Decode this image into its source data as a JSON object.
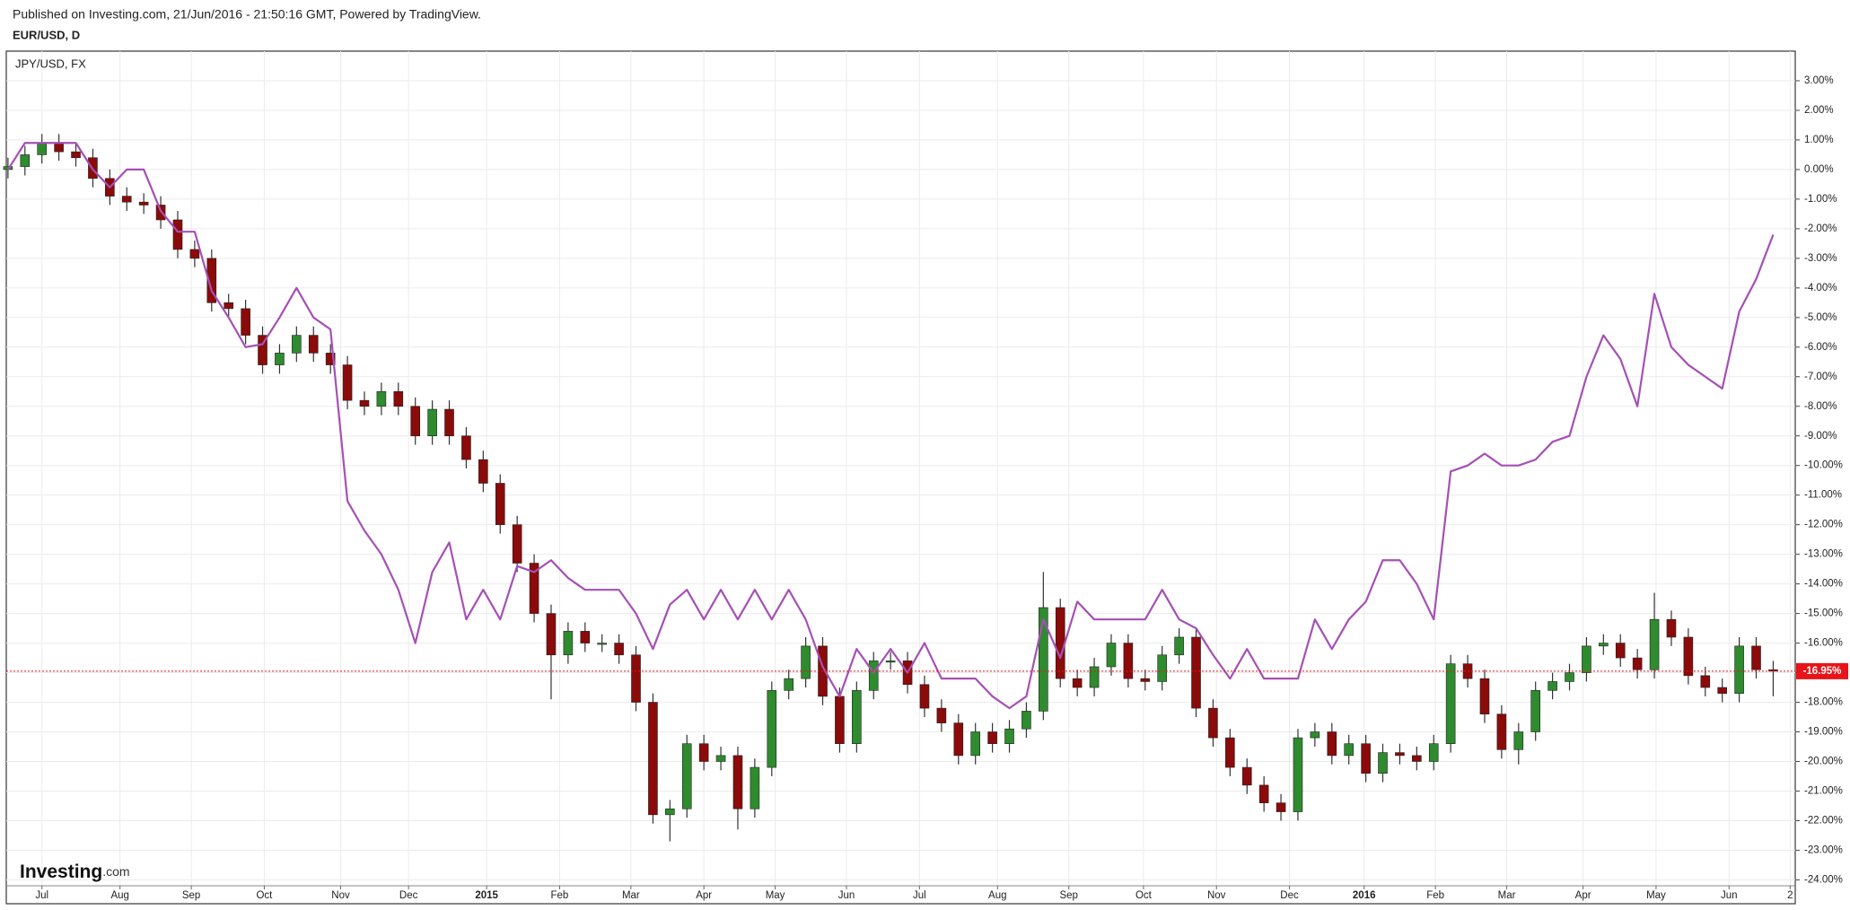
{
  "chart_data": {
    "type": "candlestick",
    "subtitle": "Published on Investing.com, 21/Jun/2016 - 21:50:16 GMT, Powered by TradingView.",
    "title": "EUR/USD, D",
    "x": [
      -2,
      -1,
      0,
      1,
      2,
      3,
      4,
      5,
      6,
      7,
      8,
      9,
      10,
      11,
      12,
      13,
      14,
      15,
      16,
      17,
      18,
      19,
      20,
      21,
      22,
      23,
      24,
      25,
      26,
      27,
      28,
      29,
      30,
      31,
      32,
      33,
      34,
      35,
      36,
      37,
      38,
      39,
      40,
      41,
      42,
      43,
      44,
      45,
      46,
      47,
      48,
      49,
      50,
      51,
      52,
      53,
      54,
      55,
      56,
      57,
      58,
      59,
      60,
      61,
      62,
      63,
      64,
      65,
      66,
      67,
      68,
      69,
      70,
      71,
      72,
      73,
      74,
      75,
      76,
      77,
      78,
      79,
      80,
      81,
      82,
      83,
      84,
      85,
      86,
      87,
      88,
      89,
      90,
      91,
      92,
      93,
      94,
      95,
      96,
      97,
      98,
      99,
      100,
      101,
      102
    ],
    "xlim": [
      -2.1,
      103.3
    ],
    "xticks": [
      {
        "value": 0,
        "label": "Jul"
      },
      {
        "value": 4.6,
        "label": "Aug"
      },
      {
        "value": 8.8,
        "label": "Sep"
      },
      {
        "value": 13.1,
        "label": "Oct"
      },
      {
        "value": 17.6,
        "label": "Nov"
      },
      {
        "value": 21.6,
        "label": "Dec"
      },
      {
        "value": 26.2,
        "label": "2015"
      },
      {
        "value": 30.5,
        "label": "Feb"
      },
      {
        "value": 34.7,
        "label": "Mar"
      },
      {
        "value": 39.0,
        "label": "Apr"
      },
      {
        "value": 43.2,
        "label": "May"
      },
      {
        "value": 47.4,
        "label": "Jun"
      },
      {
        "value": 51.7,
        "label": "Jul"
      },
      {
        "value": 56.3,
        "label": "Aug"
      },
      {
        "value": 60.5,
        "label": "Sep"
      },
      {
        "value": 64.9,
        "label": "Oct"
      },
      {
        "value": 69.2,
        "label": "Nov"
      },
      {
        "value": 73.5,
        "label": "Dec"
      },
      {
        "value": 77.9,
        "label": "2016"
      },
      {
        "value": 82.1,
        "label": "Feb"
      },
      {
        "value": 86.3,
        "label": "Mar"
      },
      {
        "value": 90.8,
        "label": "Apr"
      },
      {
        "value": 95.1,
        "label": "May"
      },
      {
        "value": 99.4,
        "label": "Jun"
      },
      {
        "value": 103.0,
        "label": "2"
      }
    ],
    "ylim": [
      -24.2,
      4.0
    ],
    "yticks": [
      {
        "value": 3,
        "label": "3.00%"
      },
      {
        "value": 2,
        "label": "2.00%"
      },
      {
        "value": 1,
        "label": "1.00%"
      },
      {
        "value": 0,
        "label": "0.00%"
      },
      {
        "value": -1,
        "label": "-1.00%"
      },
      {
        "value": -2,
        "label": "-2.00%"
      },
      {
        "value": -3,
        "label": "-3.00%"
      },
      {
        "value": -4,
        "label": "-4.00%"
      },
      {
        "value": -5,
        "label": "-5.00%"
      },
      {
        "value": -6,
        "label": "-6.00%"
      },
      {
        "value": -7,
        "label": "-7.00%"
      },
      {
        "value": -8,
        "label": "-8.00%"
      },
      {
        "value": -9,
        "label": "-9.00%"
      },
      {
        "value": -10,
        "label": "-10.00%"
      },
      {
        "value": -11,
        "label": "-11.00%"
      },
      {
        "value": -12,
        "label": "-12.00%"
      },
      {
        "value": -13,
        "label": "-13.00%"
      },
      {
        "value": -14,
        "label": "-14.00%"
      },
      {
        "value": -15,
        "label": "-15.00%"
      },
      {
        "value": -16,
        "label": "-16.00%"
      },
      {
        "value": -17,
        "label": "-17.00%"
      },
      {
        "value": -18,
        "label": "-18.00%"
      },
      {
        "value": -19,
        "label": "-19.00%"
      },
      {
        "value": -20,
        "label": "-20.00%"
      },
      {
        "value": -21,
        "label": "-21.00%"
      },
      {
        "value": -22,
        "label": "-22.00%"
      },
      {
        "value": -23,
        "label": "-23.00%"
      },
      {
        "value": -24,
        "label": "-24.00%"
      }
    ],
    "grid": true,
    "candles": {
      "up_color": "#2e8b2e",
      "down_color": "#8b0a0a",
      "open": [
        0.0,
        0.1,
        0.5,
        0.9,
        0.6,
        0.4,
        -0.3,
        -0.9,
        -1.1,
        -1.2,
        -1.7,
        -2.7,
        -3.0,
        -4.5,
        -4.7,
        -5.6,
        -6.6,
        -6.2,
        -5.6,
        -6.2,
        -6.6,
        -7.8,
        -8.0,
        -7.5,
        -8.0,
        -9.0,
        -8.1,
        -9.0,
        -9.8,
        -10.6,
        -12.0,
        -13.3,
        -15.0,
        -16.4,
        -15.6,
        -16.0,
        -16.0,
        -16.4,
        -18.0,
        -21.8,
        -21.6,
        -19.4,
        -20.0,
        -19.8,
        -21.6,
        -20.2,
        -17.6,
        -17.2,
        -16.1,
        -17.8,
        -19.4,
        -17.6,
        -16.6,
        -16.6,
        -17.4,
        -18.2,
        -18.7,
        -19.8,
        -19.0,
        -19.4,
        -18.9,
        -18.3,
        -14.8,
        -17.2,
        -17.5,
        -16.8,
        -16.0,
        -17.2,
        -17.3,
        -16.4,
        -15.8,
        -18.2,
        -19.2,
        -20.2,
        -20.8,
        -21.4,
        -21.7,
        -19.2,
        -19.0,
        -19.8,
        -19.4,
        -20.4,
        -19.7,
        -19.8,
        -20.0,
        -19.4,
        -16.7,
        -17.2,
        -18.4,
        -19.6,
        -19.0,
        -17.6,
        -17.3,
        -17.0,
        -16.1,
        -16.0,
        -16.5,
        -16.9,
        -15.2,
        -15.8,
        -17.1,
        -17.5,
        -17.7,
        -16.1,
        -16.9
      ],
      "high": [
        0.4,
        0.8,
        1.2,
        1.2,
        0.9,
        0.7,
        0.0,
        -0.6,
        -0.8,
        -0.9,
        -1.4,
        -2.4,
        -2.7,
        -4.2,
        -4.4,
        -5.3,
        -5.9,
        -5.3,
        -5.3,
        -5.9,
        -6.3,
        -7.5,
        -7.2,
        -7.2,
        -7.7,
        -7.8,
        -7.8,
        -8.7,
        -9.5,
        -10.3,
        -11.7,
        -13.0,
        -14.7,
        -15.3,
        -15.3,
        -15.7,
        -15.7,
        -16.1,
        -17.7,
        -21.3,
        -19.1,
        -19.1,
        -19.5,
        -19.5,
        -19.9,
        -17.3,
        -16.9,
        -15.8,
        -15.8,
        -17.5,
        -17.3,
        -16.3,
        -16.3,
        -16.3,
        -17.1,
        -17.9,
        -18.4,
        -18.7,
        -18.7,
        -18.6,
        -18.0,
        -13.6,
        -14.5,
        -16.9,
        -16.5,
        -15.7,
        -15.7,
        -16.9,
        -16.1,
        -15.5,
        -15.5,
        -17.9,
        -18.9,
        -19.9,
        -20.5,
        -21.1,
        -18.9,
        -18.7,
        -18.7,
        -19.1,
        -19.1,
        -19.4,
        -19.4,
        -19.5,
        -19.1,
        -16.4,
        -16.4,
        -16.9,
        -18.1,
        -18.7,
        -17.3,
        -17.0,
        -16.7,
        -15.8,
        -15.7,
        -15.7,
        -16.2,
        -14.3,
        -14.9,
        -15.5,
        -16.8,
        -17.2,
        -15.8,
        -15.8,
        -16.6
      ],
      "low": [
        -0.3,
        -0.2,
        0.2,
        0.3,
        0.1,
        -0.6,
        -1.2,
        -1.4,
        -1.5,
        -2.0,
        -3.0,
        -3.3,
        -4.8,
        -5.0,
        -5.9,
        -6.9,
        -6.9,
        -6.5,
        -6.5,
        -6.9,
        -8.1,
        -8.3,
        -8.3,
        -8.3,
        -9.3,
        -9.3,
        -9.3,
        -10.1,
        -10.9,
        -12.3,
        -13.6,
        -15.3,
        -17.9,
        -16.7,
        -16.3,
        -16.3,
        -16.7,
        -18.3,
        -22.1,
        -22.7,
        -21.9,
        -20.3,
        -20.3,
        -22.3,
        -21.9,
        -20.5,
        -17.9,
        -17.5,
        -18.1,
        -19.7,
        -19.7,
        -17.9,
        -16.9,
        -17.7,
        -18.5,
        -19.0,
        -20.1,
        -20.1,
        -19.7,
        -19.7,
        -19.2,
        -18.6,
        -17.5,
        -17.8,
        -17.8,
        -17.1,
        -17.5,
        -17.6,
        -17.6,
        -16.7,
        -18.5,
        -19.5,
        -20.5,
        -21.1,
        -21.7,
        -22.0,
        -22.0,
        -19.5,
        -20.1,
        -20.1,
        -20.7,
        -20.7,
        -20.1,
        -20.3,
        -20.3,
        -19.7,
        -17.5,
        -18.7,
        -19.9,
        -20.1,
        -19.3,
        -17.9,
        -17.6,
        -17.3,
        -16.4,
        -16.8,
        -17.2,
        -17.2,
        -16.1,
        -17.4,
        -17.8,
        -18.0,
        -18.0,
        -17.2,
        -17.8
      ],
      "close": [
        0.1,
        0.5,
        0.9,
        0.6,
        0.4,
        -0.3,
        -0.9,
        -1.1,
        -1.2,
        -1.7,
        -2.7,
        -3.0,
        -4.5,
        -4.7,
        -5.6,
        -6.6,
        -6.2,
        -5.6,
        -6.2,
        -6.6,
        -7.8,
        -8.0,
        -7.5,
        -8.0,
        -9.0,
        -8.1,
        -9.0,
        -9.8,
        -10.6,
        -12.0,
        -13.3,
        -15.0,
        -16.4,
        -15.6,
        -16.0,
        -16.0,
        -16.4,
        -18.0,
        -21.8,
        -21.6,
        -19.4,
        -20.0,
        -19.8,
        -21.6,
        -20.2,
        -17.6,
        -17.2,
        -16.1,
        -17.8,
        -19.4,
        -17.6,
        -16.6,
        -16.6,
        -17.4,
        -18.2,
        -18.7,
        -19.8,
        -19.0,
        -19.4,
        -18.9,
        -18.3,
        -14.8,
        -17.2,
        -17.5,
        -16.8,
        -16.0,
        -17.2,
        -17.3,
        -16.4,
        -15.8,
        -18.2,
        -19.2,
        -20.2,
        -20.8,
        -21.4,
        -21.7,
        -19.2,
        -19.0,
        -19.8,
        -19.4,
        -20.4,
        -19.7,
        -19.8,
        -20.0,
        -19.4,
        -16.7,
        -17.2,
        -18.4,
        -19.6,
        -19.0,
        -17.6,
        -17.3,
        -17.0,
        -16.1,
        -16.0,
        -16.5,
        -16.9,
        -15.2,
        -15.8,
        -17.1,
        -17.5,
        -17.7,
        -16.1,
        -16.9,
        -16.95
      ]
    },
    "series": [
      {
        "name": "JPY/USD, FX",
        "color": "#a550b5",
        "values": [
          0.0,
          0.9,
          0.9,
          0.9,
          0.9,
          0.0,
          -0.6,
          0.0,
          0.0,
          -1.4,
          -2.1,
          -2.1,
          -4.1,
          -5.0,
          -6.0,
          -5.9,
          -5.0,
          -4.0,
          -5.0,
          -5.4,
          -11.2,
          -12.2,
          -13.0,
          -14.2,
          -16.0,
          -13.6,
          -12.6,
          -15.2,
          -14.2,
          -15.2,
          -13.4,
          -13.6,
          -13.2,
          -13.8,
          -14.2,
          -14.2,
          -14.2,
          -15.0,
          -16.2,
          -14.7,
          -14.2,
          -15.2,
          -14.2,
          -15.2,
          -14.2,
          -15.2,
          -14.2,
          -15.2,
          -16.8,
          -17.8,
          -16.2,
          -17.0,
          -16.2,
          -17.0,
          -16.0,
          -17.2,
          -17.2,
          -17.2,
          -17.8,
          -18.2,
          -17.8,
          -15.2,
          -16.5,
          -14.6,
          -15.2,
          -15.2,
          -15.2,
          -15.2,
          -14.2,
          -15.2,
          -15.5,
          -16.4,
          -17.2,
          -16.2,
          -17.2,
          -17.2,
          -17.2,
          -15.2,
          -16.2,
          -15.2,
          -14.6,
          -13.2,
          -13.2,
          -14.0,
          -15.2,
          -10.2,
          -10.0,
          -9.6,
          -10.0,
          -10.0,
          -9.8,
          -9.2,
          -9.0,
          -7.0,
          -5.6,
          -6.4,
          -8.0,
          -4.2,
          -6.0,
          -6.6,
          -7.0,
          -7.4,
          -4.8,
          -3.7,
          -2.2
        ]
      }
    ],
    "last_value": {
      "value": -16.95,
      "label": "-16.95%",
      "color": "#e8141a"
    },
    "logo": {
      "name": "Investing",
      "suffix": ".com"
    }
  }
}
